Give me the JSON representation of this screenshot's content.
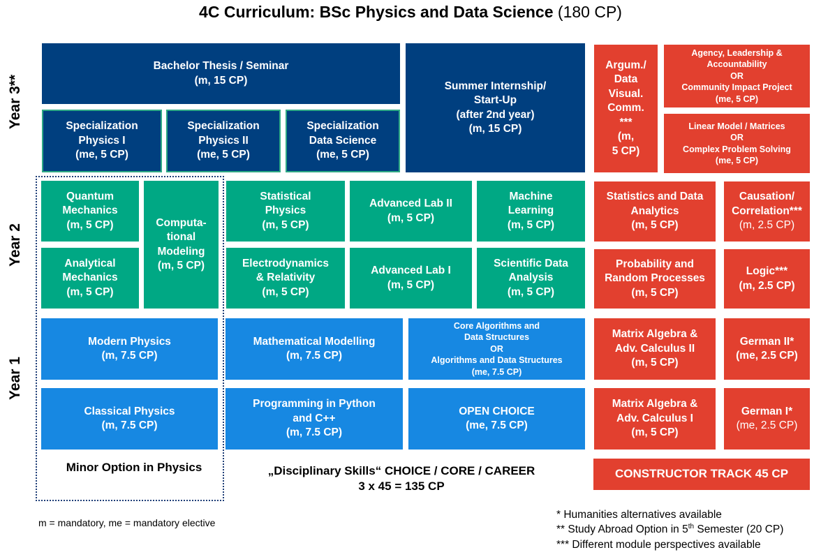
{
  "title": {
    "main": "4C Curriculum: BSc Physics and Data Science",
    "credits": "(180 CP)"
  },
  "years": {
    "y3": "Year 3**",
    "y2": "Year 2",
    "y1": "Year 1"
  },
  "modules": {
    "thesis": [
      "Bachelor Thesis / Seminar",
      "(m, 15 CP)"
    ],
    "spec_phys1": [
      "Specialization",
      "Physics I",
      "(me, 5 CP)"
    ],
    "spec_phys2": [
      "Specialization",
      "Physics II",
      "(me, 5 CP)"
    ],
    "spec_ds": [
      "Specialization",
      "Data Science",
      "(me, 5 CP)"
    ],
    "internship": [
      "Summer Internship/",
      "Start-Up",
      "(after 2nd year)",
      "(m, 15 CP)"
    ],
    "argum": [
      "Argum./",
      "Data",
      "Visual.",
      "Comm.",
      "***",
      "(m,",
      "5 CP)"
    ],
    "agency": [
      "Agency, Leadership &",
      "Accountability",
      "OR",
      "Community Impact Project",
      "(me, 5 CP)"
    ],
    "linear": [
      "Linear Model / Matrices",
      "OR",
      "Complex Problem Solving",
      "(me, 5 CP)"
    ],
    "quantum": [
      "Quantum",
      "Mechanics",
      "(m, 5 CP)"
    ],
    "analytical": [
      "Analytical",
      "Mechanics",
      "(m, 5 CP)"
    ],
    "computational": [
      "Computa-",
      "tional",
      "Modeling",
      "(m, 5 CP)"
    ],
    "statphys": [
      "Statistical",
      "Physics",
      "(m, 5 CP)"
    ],
    "advlab2": [
      "Advanced Lab II",
      "(m, 5 CP)"
    ],
    "ml": [
      "Machine",
      "Learning",
      "(m, 5 CP)"
    ],
    "electro": [
      "Electrodynamics",
      "& Relativity",
      "(m, 5 CP)"
    ],
    "advlab1": [
      "Advanced Lab I",
      "(m, 5 CP)"
    ],
    "sda": [
      "Scientific Data",
      "Analysis",
      "(m, 5 CP)"
    ],
    "stats": [
      "Statistics and Data",
      "Analytics",
      "(m, 5 CP)"
    ],
    "causation": [
      "Causation/",
      "Correlation***",
      "(m, 2.5 CP)"
    ],
    "probability": [
      "Probability and",
      "Random Processes",
      "(m, 5 CP)"
    ],
    "logic": [
      "Logic***",
      "(m, 2.5 CP)"
    ],
    "modern": [
      "Modern Physics",
      "(m, 7.5 CP)"
    ],
    "mathmod": [
      "Mathematical Modelling",
      "(m, 7.5 CP)"
    ],
    "algo": [
      "Core Algorithms and",
      "Data Structures",
      "OR",
      "Algorithms and Data Structures",
      "(me, 7.5 CP)"
    ],
    "matrix2": [
      "Matrix Algebra &",
      "Adv. Calculus II",
      "(m, 5 CP)"
    ],
    "german2": [
      "German II*",
      "(me, 2.5 CP)"
    ],
    "classical": [
      "Classical Physics",
      "(m, 7.5 CP)"
    ],
    "python": [
      "Programming in Python",
      "and C++",
      "(m, 7.5 CP)"
    ],
    "open": [
      "OPEN CHOICE",
      "(me, 7.5 CP)"
    ],
    "matrix1": [
      "Matrix Algebra &",
      "Adv. Calculus I",
      "(m, 5 CP)"
    ],
    "german1": [
      "German I*",
      "(me, 2.5 CP)"
    ]
  },
  "constructor_track": "CONSTRUCTOR  TRACK 45 CP",
  "minor_label": "Minor Option in Physics",
  "disciplinary": [
    "„Disciplinary Skills“ CHOICE / CORE / CAREER",
    "3 x 45 = 135 CP"
  ],
  "legend": "m = mandatory, me = mandatory elective",
  "footnotes": {
    "f1": "* Humanities alternatives available",
    "f2_pre": "** Study Abroad Option in 5",
    "f2_sup": "th",
    "f2_post": " Semester (20 CP)",
    "f3": "*** Different module perspectives available"
  },
  "colors": {
    "navy": "#003f7f",
    "green": "#00a884",
    "blue": "#1788e2",
    "red": "#e2402f",
    "dotted_border": "#1f3e77"
  }
}
